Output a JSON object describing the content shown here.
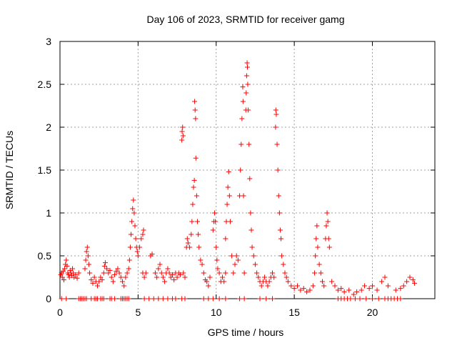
{
  "chart_data": {
    "type": "scatter",
    "title": "Day 106 of 2023, SRMTID for receiver gamg",
    "xlabel": "GPS time / hours",
    "ylabel": "SRMTID / TECUs",
    "xlim": [
      0,
      24
    ],
    "ylim": [
      0,
      3
    ],
    "xticks": [
      0,
      5,
      10,
      15,
      20
    ],
    "yticks": [
      0,
      0.5,
      1,
      1.5,
      2,
      2.5,
      3
    ],
    "xtick_labels": [
      "0",
      "5",
      "10",
      "15",
      "20"
    ],
    "ytick_labels": [
      "0",
      "0.5",
      "1",
      "1.5",
      "2",
      "2.5",
      "3"
    ],
    "grid": true,
    "marker": "+",
    "color": "#ff0000",
    "series": [
      {
        "name": "SRMTID",
        "points": [
          [
            0.05,
            0.28
          ],
          [
            0.1,
            0.3
          ],
          [
            0.15,
            0.25
          ],
          [
            0.2,
            0.32
          ],
          [
            0.25,
            0.22
          ],
          [
            0.3,
            0.35
          ],
          [
            0.35,
            0.4
          ],
          [
            0.4,
            0.45
          ],
          [
            0.45,
            0.38
          ],
          [
            0.5,
            0.3
          ],
          [
            0.55,
            0.28
          ],
          [
            0.6,
            0.25
          ],
          [
            0.65,
            0.33
          ],
          [
            0.7,
            0.3
          ],
          [
            0.75,
            0.27
          ],
          [
            0.8,
            0.35
          ],
          [
            0.85,
            0.3
          ],
          [
            0.9,
            0.25
          ],
          [
            1.0,
            0.28
          ],
          [
            1.1,
            0.24
          ],
          [
            1.2,
            0.3
          ],
          [
            0.1,
            0.0
          ],
          [
            0.4,
            0.0
          ],
          [
            1.2,
            0.0
          ],
          [
            1.3,
            0.0
          ],
          [
            1.4,
            0.0
          ],
          [
            1.5,
            0.0
          ],
          [
            1.6,
            0.0
          ],
          [
            1.7,
            0.0
          ],
          [
            2.0,
            0.0
          ],
          [
            2.2,
            0.0
          ],
          [
            2.3,
            0.0
          ],
          [
            2.4,
            0.0
          ],
          [
            2.6,
            0.0
          ],
          [
            2.7,
            0.0
          ],
          [
            2.8,
            0.0
          ],
          [
            3.2,
            0.0
          ],
          [
            3.3,
            0.0
          ],
          [
            3.5,
            0.0
          ],
          [
            3.9,
            0.0
          ],
          [
            4.0,
            0.0
          ],
          [
            4.1,
            0.0
          ],
          [
            4.2,
            0.0
          ],
          [
            4.3,
            0.0
          ],
          [
            4.4,
            0.0
          ],
          [
            1.6,
            0.35
          ],
          [
            1.65,
            0.45
          ],
          [
            1.7,
            0.55
          ],
          [
            1.75,
            0.6
          ],
          [
            1.8,
            0.5
          ],
          [
            1.85,
            0.4
          ],
          [
            1.9,
            0.3
          ],
          [
            2.0,
            0.22
          ],
          [
            2.1,
            0.18
          ],
          [
            2.2,
            0.25
          ],
          [
            2.3,
            0.2
          ],
          [
            2.4,
            0.15
          ],
          [
            2.5,
            0.2
          ],
          [
            2.6,
            0.25
          ],
          [
            2.7,
            0.22
          ],
          [
            2.8,
            0.3
          ],
          [
            2.85,
            0.38
          ],
          [
            2.9,
            0.42
          ],
          [
            3.0,
            0.35
          ],
          [
            3.1,
            0.3
          ],
          [
            3.2,
            0.33
          ],
          [
            3.3,
            0.25
          ],
          [
            3.4,
            0.2
          ],
          [
            3.5,
            0.28
          ],
          [
            3.6,
            0.32
          ],
          [
            3.7,
            0.35
          ],
          [
            3.8,
            0.3
          ],
          [
            3.9,
            0.25
          ],
          [
            4.0,
            0.2
          ],
          [
            4.1,
            0.15
          ],
          [
            4.2,
            0.25
          ],
          [
            4.3,
            0.3
          ],
          [
            4.4,
            0.35
          ],
          [
            4.45,
            0.45
          ],
          [
            4.5,
            0.6
          ],
          [
            4.55,
            0.75
          ],
          [
            4.6,
            0.9
          ],
          [
            4.65,
            1.05
          ],
          [
            4.7,
            1.15
          ],
          [
            4.75,
            1.0
          ],
          [
            4.8,
            0.85
          ],
          [
            4.85,
            0.7
          ],
          [
            4.9,
            0.6
          ],
          [
            4.95,
            0.55
          ],
          [
            5.0,
            0.5
          ],
          [
            5.1,
            0.6
          ],
          [
            5.2,
            0.7
          ],
          [
            5.3,
            0.75
          ],
          [
            5.35,
            0.8
          ],
          [
            5.3,
            0.3
          ],
          [
            5.4,
            0.25
          ],
          [
            5.5,
            0.3
          ],
          [
            5.4,
            0.0
          ],
          [
            5.7,
            0.0
          ],
          [
            6.0,
            0.0
          ],
          [
            6.3,
            0.0
          ],
          [
            6.6,
            0.0
          ],
          [
            6.9,
            0.0
          ],
          [
            7.2,
            0.0
          ],
          [
            7.4,
            0.0
          ],
          [
            7.8,
            0.0
          ],
          [
            8.0,
            0.0
          ],
          [
            5.8,
            0.5
          ],
          [
            5.9,
            0.52
          ],
          [
            6.1,
            0.3
          ],
          [
            6.2,
            0.25
          ],
          [
            6.3,
            0.35
          ],
          [
            6.4,
            0.4
          ],
          [
            6.5,
            0.3
          ],
          [
            6.6,
            0.25
          ],
          [
            6.7,
            0.2
          ],
          [
            6.8,
            0.3
          ],
          [
            6.9,
            0.35
          ],
          [
            7.0,
            0.3
          ],
          [
            7.1,
            0.25
          ],
          [
            7.2,
            0.28
          ],
          [
            7.3,
            0.22
          ],
          [
            7.4,
            0.3
          ],
          [
            7.5,
            0.25
          ],
          [
            7.6,
            0.3
          ],
          [
            7.7,
            0.28
          ],
          [
            7.8,
            1.85
          ],
          [
            7.82,
            1.95
          ],
          [
            7.85,
            2.0
          ],
          [
            7.88,
            1.9
          ],
          [
            7.9,
            0.3
          ],
          [
            8.0,
            0.25
          ],
          [
            8.1,
            0.6
          ],
          [
            8.15,
            0.7
          ],
          [
            8.2,
            0.65
          ],
          [
            8.3,
            0.6
          ],
          [
            8.4,
            0.75
          ],
          [
            8.45,
            0.9
          ],
          [
            8.5,
            1.1
          ],
          [
            8.55,
            1.3
          ],
          [
            8.6,
            1.38
          ],
          [
            8.62,
            2.3
          ],
          [
            8.65,
            2.2
          ],
          [
            8.68,
            2.1
          ],
          [
            8.7,
            1.64
          ],
          [
            8.75,
            1.2
          ],
          [
            8.8,
            0.9
          ],
          [
            8.85,
            0.75
          ],
          [
            8.9,
            0.6
          ],
          [
            9.0,
            0.45
          ],
          [
            9.1,
            0.4
          ],
          [
            9.2,
            0.3
          ],
          [
            9.3,
            0.22
          ],
          [
            9.4,
            0.2
          ],
          [
            9.5,
            0.15
          ],
          [
            9.6,
            0.25
          ],
          [
            9.2,
            0.0
          ],
          [
            9.5,
            0.0
          ],
          [
            9.8,
            0.0
          ],
          [
            10.2,
            0.0
          ],
          [
            10.6,
            0.0
          ],
          [
            11.5,
            0.0
          ],
          [
            11.8,
            0.0
          ],
          [
            9.8,
            0.8
          ],
          [
            9.85,
            0.9
          ],
          [
            9.9,
            1.0
          ],
          [
            9.95,
            0.9
          ],
          [
            10.0,
            0.6
          ],
          [
            10.05,
            0.45
          ],
          [
            10.1,
            0.35
          ],
          [
            10.2,
            0.3
          ],
          [
            10.3,
            0.2
          ],
          [
            10.4,
            0.25
          ],
          [
            10.5,
            0.2
          ],
          [
            10.6,
            0.3
          ],
          [
            10.6,
            0.7
          ],
          [
            10.65,
            0.9
          ],
          [
            10.7,
            1.1
          ],
          [
            10.75,
            1.3
          ],
          [
            10.8,
            1.48
          ],
          [
            10.85,
            1.2
          ],
          [
            10.9,
            0.9
          ],
          [
            11.0,
            0.5
          ],
          [
            11.1,
            0.3
          ],
          [
            11.2,
            0.4
          ],
          [
            11.3,
            0.5
          ],
          [
            11.4,
            0.45
          ],
          [
            11.5,
            1.2
          ],
          [
            11.55,
            1.5
          ],
          [
            11.6,
            1.8
          ],
          [
            11.65,
            2.1
          ],
          [
            11.7,
            2.47
          ],
          [
            11.72,
            2.3
          ],
          [
            11.75,
            1.2
          ],
          [
            11.8,
            0.3
          ],
          [
            11.9,
            2.2
          ],
          [
            11.92,
            2.4
          ],
          [
            11.95,
            2.6
          ],
          [
            11.98,
            2.75
          ],
          [
            12.0,
            2.7
          ],
          [
            12.02,
            2.5
          ],
          [
            12.05,
            2.2
          ],
          [
            12.1,
            1.8
          ],
          [
            12.15,
            1.4
          ],
          [
            12.2,
            1.0
          ],
          [
            12.25,
            0.8
          ],
          [
            12.3,
            0.6
          ],
          [
            12.4,
            0.5
          ],
          [
            12.5,
            0.4
          ],
          [
            12.6,
            0.3
          ],
          [
            12.7,
            0.25
          ],
          [
            12.8,
            0.2
          ],
          [
            12.9,
            0.15
          ],
          [
            13.0,
            0.2
          ],
          [
            13.1,
            0.25
          ],
          [
            13.2,
            0.2
          ],
          [
            13.3,
            0.15
          ],
          [
            13.4,
            0.2
          ],
          [
            13.5,
            0.25
          ],
          [
            13.6,
            0.3
          ],
          [
            13.7,
            0.25
          ],
          [
            12.8,
            0.0
          ],
          [
            13.2,
            0.0
          ],
          [
            13.6,
            0.0
          ],
          [
            13.8,
            2.0
          ],
          [
            13.82,
            2.2
          ],
          [
            13.85,
            2.15
          ],
          [
            13.9,
            1.8
          ],
          [
            13.95,
            1.5
          ],
          [
            14.0,
            1.2
          ],
          [
            14.05,
            1.0
          ],
          [
            14.1,
            0.8
          ],
          [
            14.15,
            0.7
          ],
          [
            14.2,
            0.5
          ],
          [
            14.3,
            0.4
          ],
          [
            14.4,
            0.3
          ],
          [
            14.5,
            0.25
          ],
          [
            14.6,
            0.2
          ],
          [
            14.8,
            0.15
          ],
          [
            15.0,
            0.12
          ],
          [
            15.2,
            0.15
          ],
          [
            15.4,
            0.1
          ],
          [
            15.6,
            0.12
          ],
          [
            15.8,
            0.08
          ],
          [
            16.0,
            0.1
          ],
          [
            16.2,
            0.15
          ],
          [
            16.3,
            0.3
          ],
          [
            16.35,
            0.5
          ],
          [
            16.4,
            0.7
          ],
          [
            16.45,
            0.85
          ],
          [
            16.5,
            0.6
          ],
          [
            16.6,
            0.4
          ],
          [
            16.7,
            0.3
          ],
          [
            16.8,
            0.2
          ],
          [
            16.9,
            0.15
          ],
          [
            17.0,
            0.7
          ],
          [
            17.05,
            0.85
          ],
          [
            17.1,
            1.0
          ],
          [
            17.15,
            0.9
          ],
          [
            17.2,
            0.7
          ],
          [
            17.25,
            0.6
          ],
          [
            17.4,
            0.2
          ],
          [
            17.6,
            0.15
          ],
          [
            17.8,
            0.1
          ],
          [
            18.0,
            0.12
          ],
          [
            18.2,
            0.08
          ],
          [
            18.5,
            0.1
          ],
          [
            18.8,
            0.05
          ],
          [
            19.0,
            0.08
          ],
          [
            19.3,
            0.1
          ],
          [
            19.5,
            0.15
          ],
          [
            19.8,
            0.12
          ],
          [
            20.0,
            0.15
          ],
          [
            20.3,
            0.1
          ],
          [
            20.6,
            0.2
          ],
          [
            20.8,
            0.25
          ],
          [
            21.0,
            0.15
          ],
          [
            21.5,
            0.1
          ],
          [
            21.8,
            0.12
          ],
          [
            22.0,
            0.15
          ],
          [
            22.2,
            0.2
          ],
          [
            22.4,
            0.25
          ],
          [
            22.6,
            0.22
          ],
          [
            22.7,
            0.18
          ],
          [
            17.8,
            0.0
          ],
          [
            18.0,
            0.0
          ],
          [
            18.2,
            0.0
          ],
          [
            18.4,
            0.0
          ],
          [
            18.6,
            0.0
          ],
          [
            18.9,
            0.0
          ],
          [
            19.2,
            0.0
          ],
          [
            19.6,
            0.0
          ],
          [
            20.0,
            0.0
          ],
          [
            20.4,
            0.0
          ],
          [
            20.8,
            0.0
          ],
          [
            21.0,
            0.0
          ],
          [
            21.2,
            0.0
          ],
          [
            21.4,
            0.0
          ],
          [
            21.6,
            0.0
          ],
          [
            21.8,
            0.0
          ]
        ]
      }
    ]
  }
}
